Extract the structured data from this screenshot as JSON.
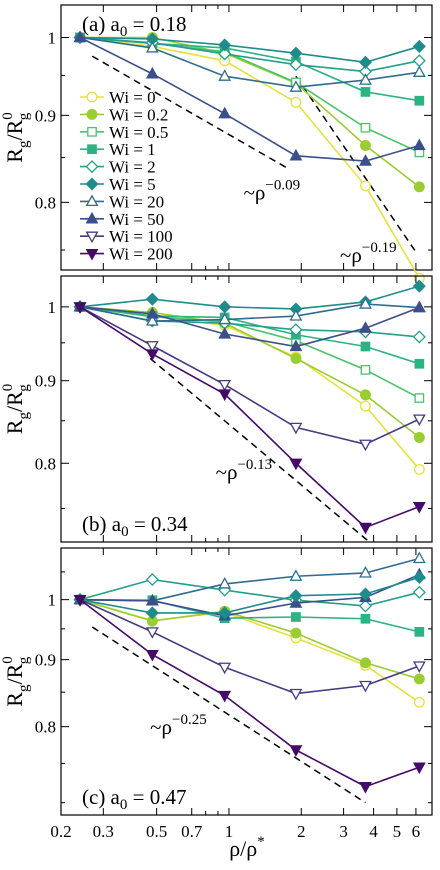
{
  "chart_data": {
    "type": "line",
    "x_scale": "log",
    "y_scale": "log",
    "x": [
      0.24,
      0.48,
      0.96,
      1.9,
      3.7,
      6.2
    ],
    "xlabel": {
      "main": "ρ/ρ",
      "sup": "*"
    },
    "ylabel": {
      "main": "R",
      "sub1": "g",
      "mid": "/R",
      "sub2": "g",
      "sup2": "0"
    },
    "xlim": [
      0.2,
      7.0
    ],
    "x_ticks": [
      {
        "v": 0.2,
        "label": "0.2"
      },
      {
        "v": 0.3,
        "label": "0.3"
      },
      {
        "v": 0.5,
        "label": "0.5"
      },
      {
        "v": 0.7,
        "label": "0.7"
      },
      {
        "v": 1,
        "label": "1"
      },
      {
        "v": 2,
        "label": "2"
      },
      {
        "v": 3,
        "label": "3"
      },
      {
        "v": 4,
        "label": "4"
      },
      {
        "v": 5,
        "label": "5"
      },
      {
        "v": 6,
        "label": "6"
      }
    ],
    "y_ticks": [
      {
        "v": 0.8,
        "label": "0.8"
      },
      {
        "v": 0.9,
        "label": "0.9"
      },
      {
        "v": 1.0,
        "label": "1"
      }
    ],
    "legend": {
      "placement": "left, panel a",
      "entries": [
        {
          "label": "Wi = 0",
          "color": "#e8e03a",
          "marker": "circle",
          "filled": false
        },
        {
          "label": "Wi = 0.2",
          "color": "#9acd32",
          "marker": "circle",
          "filled": true
        },
        {
          "label": "Wi = 0.5",
          "color": "#4cc26a",
          "marker": "square",
          "filled": false
        },
        {
          "label": "Wi = 1",
          "color": "#2cb283",
          "marker": "square",
          "filled": true
        },
        {
          "label": "Wi = 2",
          "color": "#22a08a",
          "marker": "diamond",
          "filled": false
        },
        {
          "label": "Wi = 5",
          "color": "#1f8c8c",
          "marker": "diamond",
          "filled": true
        },
        {
          "label": "Wi = 20",
          "color": "#2e6c8e",
          "marker": "triangle-up",
          "filled": false
        },
        {
          "label": "Wi = 50",
          "color": "#3b4f8a",
          "marker": "triangle-up",
          "filled": true
        },
        {
          "label": "Wi = 100",
          "color": "#473a85",
          "marker": "triangle-down",
          "filled": false
        },
        {
          "label": "Wi = 200",
          "color": "#440a68",
          "marker": "triangle-down",
          "filled": true
        }
      ]
    },
    "panels": [
      {
        "label_prefix": "(a) a",
        "label_sub": "0",
        "label_suffix": " = 0.18",
        "label_pos": "top-left",
        "ylim": [
          0.73,
          1.045
        ],
        "guides": [
          {
            "x": [
              0.27,
              1.75
            ],
            "y": [
              0.975,
              0.838
            ],
            "text": "~ρ",
            "exp": "−0.09",
            "tx": 1.15,
            "ty": 0.803
          },
          {
            "x": [
              1.9,
              6.0
            ],
            "y": [
              0.949,
              0.748
            ],
            "text": "~ρ",
            "exp": "−0.19",
            "tx": 2.9,
            "ty": 0.738
          }
        ],
        "series": [
          [
            1.0,
            0.988,
            0.969,
            0.916,
            0.818,
            0.722
          ],
          [
            1.0,
            1.0,
            0.979,
            0.94,
            0.864,
            0.817
          ],
          [
            1.0,
            0.992,
            0.981,
            0.941,
            0.885,
            0.856
          ],
          [
            1.0,
            0.992,
            0.986,
            0.968,
            0.929,
            0.918
          ],
          [
            1.0,
            0.993,
            0.978,
            0.964,
            0.955,
            0.969
          ],
          [
            1.0,
            0.998,
            0.99,
            0.979,
            0.967,
            0.988
          ],
          [
            1.0,
            0.986,
            0.949,
            0.935,
            0.944,
            0.954
          ],
          [
            1.0,
            0.952,
            0.902,
            0.852,
            0.846,
            0.864
          ]
        ]
      },
      {
        "label_prefix": "(b) a",
        "label_sub": "0",
        "label_suffix": " = 0.34",
        "label_pos": "bottom-left",
        "ylim": [
          0.715,
          1.045
        ],
        "guides": [
          {
            "x": [
              0.47,
              3.8
            ],
            "y": [
              0.929,
              0.716
            ],
            "text": "~ρ",
            "exp": "−0.13",
            "tx": 0.88,
            "ty": 0.782
          }
        ],
        "series": [
          [
            1.0,
            0.987,
            0.974,
            0.931,
            0.868,
            0.793
          ],
          [
            1.0,
            0.992,
            0.977,
            0.929,
            0.882,
            0.83
          ],
          [
            1.0,
            0.986,
            0.979,
            0.953,
            0.914,
            0.878
          ],
          [
            1.0,
            0.987,
            0.985,
            0.961,
            0.945,
            0.922
          ],
          [
            1.0,
            0.98,
            0.977,
            0.968,
            0.965,
            0.958
          ],
          [
            1.0,
            1.011,
            1.0,
            0.997,
            1.007,
            1.03
          ],
          [
            1.0,
            0.98,
            0.982,
            0.987,
            1.004,
            0.999
          ],
          [
            1.0,
            0.99,
            0.962,
            0.945,
            0.97,
            0.999
          ],
          [
            1.0,
            0.946,
            0.895,
            0.842,
            0.822,
            0.852
          ],
          [
            1.0,
            0.935,
            0.883,
            0.8,
            0.73,
            0.752
          ]
        ]
      },
      {
        "label_prefix": "(c) a",
        "label_sub": "0",
        "label_suffix": " = 0.47",
        "label_pos": "bottom-left",
        "ylim": [
          0.685,
          1.095
        ],
        "guides": [
          {
            "x": [
              0.27,
              3.7
            ],
            "y": [
              0.953,
              0.7
            ],
            "text": "~ρ",
            "exp": "−0.25",
            "tx": 0.47,
            "ty": 0.79
          }
        ],
        "series": [
          [
            1.0,
            0.964,
            0.978,
            0.935,
            0.891,
            0.835
          ],
          [
            1.0,
            0.963,
            0.98,
            0.943,
            0.895,
            0.87
          ],
          [
            1.0,
            0.999,
            0.968,
            0.97,
            0.967,
            0.945
          ],
          [
            1.0,
            1.036,
            1.017,
            0.999,
            0.989,
            1.013
          ],
          [
            1.0,
            0.998,
            1.028,
            1.042,
            1.048,
            1.075
          ],
          [
            1.0,
            0.998,
            0.972,
            0.994,
            1.004,
            1.045
          ],
          [
            1.0,
            0.977,
            0.977,
            1.007,
            1.01,
            1.04
          ],
          [
            1.0,
            0.945,
            0.888,
            0.848,
            0.86,
            0.89
          ],
          [
            1.0,
            0.908,
            0.845,
            0.768,
            0.72,
            0.745
          ]
        ]
      }
    ],
    "panel_series_colors": [
      [
        "#e8e03a",
        "#9acd32",
        "#4cc26a",
        "#2cb283",
        "#22a08a",
        "#1f8c8c",
        "#2e6c8e",
        "#3b4f8a"
      ],
      [
        "#e8e03a",
        "#9acd32",
        "#4cc26a",
        "#2cb283",
        "#22a08a",
        "#1f8c8c",
        "#2e6c8e",
        "#3b4f8a",
        "#473a85",
        "#440a68"
      ],
      [
        "#e8e03a",
        "#9acd32",
        "#2cb283",
        "#22a08a",
        "#2e6c8e",
        "#3b4f8a",
        "#1f8c8c",
        "#473a85",
        "#440a68"
      ]
    ],
    "panel_series_legend_index": [
      [
        0,
        1,
        2,
        3,
        4,
        5,
        6,
        7
      ],
      [
        0,
        1,
        2,
        3,
        4,
        5,
        6,
        7,
        8,
        9
      ],
      [
        0,
        1,
        3,
        4,
        6,
        7,
        5,
        8,
        9
      ]
    ]
  }
}
